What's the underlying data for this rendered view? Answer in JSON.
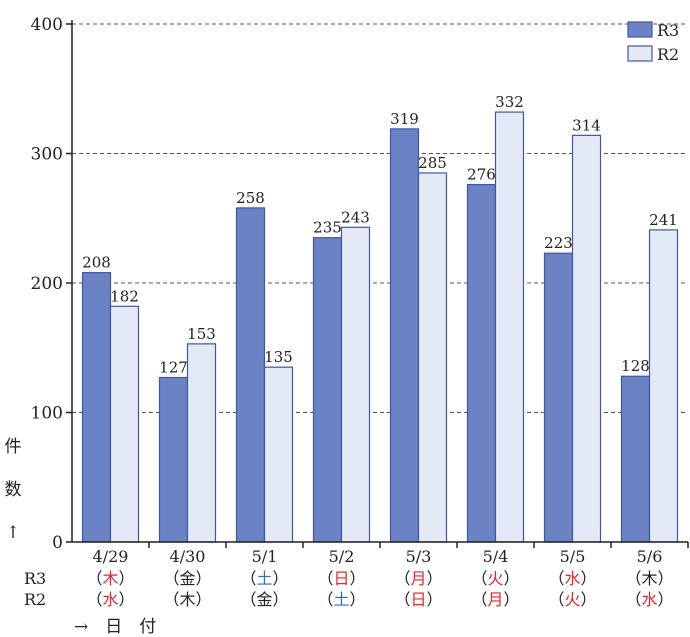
{
  "chart_data": {
    "type": "bar",
    "categories": [
      "4/29",
      "4/30",
      "5/1",
      "5/2",
      "5/3",
      "5/4",
      "5/5",
      "5/6"
    ],
    "series": [
      {
        "name": "R3",
        "values": [
          208,
          127,
          258,
          235,
          319,
          276,
          223,
          128
        ],
        "color": "#6b83c4",
        "stroke": "#3f57a0"
      },
      {
        "name": "R2",
        "values": [
          182,
          153,
          135,
          243,
          285,
          332,
          314,
          241
        ],
        "color": "#e4e9f6",
        "stroke": "#3f57a0"
      }
    ],
    "ylim": [
      0,
      400
    ],
    "yticks": [
      0,
      100,
      200,
      300,
      400
    ],
    "grid": true,
    "legend": "top-right",
    "ylabel": [
      "件",
      "数",
      "↑"
    ],
    "xlabel": "→ 日 付",
    "row_labels": [
      "R3",
      "R2"
    ],
    "weekdays": {
      "R3": [
        {
          "text": "木",
          "color": "red"
        },
        {
          "text": "金",
          "color": "black"
        },
        {
          "text": "土",
          "color": "blue"
        },
        {
          "text": "日",
          "color": "red"
        },
        {
          "text": "月",
          "color": "red"
        },
        {
          "text": "火",
          "color": "red"
        },
        {
          "text": "水",
          "color": "red"
        },
        {
          "text": "木",
          "color": "black"
        }
      ],
      "R2": [
        {
          "text": "水",
          "color": "red"
        },
        {
          "text": "木",
          "color": "black"
        },
        {
          "text": "金",
          "color": "black"
        },
        {
          "text": "土",
          "color": "blue"
        },
        {
          "text": "日",
          "color": "red"
        },
        {
          "text": "月",
          "color": "red"
        },
        {
          "text": "火",
          "color": "red"
        },
        {
          "text": "水",
          "color": "red"
        }
      ]
    },
    "weekday_colors": {
      "red": "#e8262b",
      "blue": "#2f6bbf",
      "black": "#222222"
    }
  }
}
